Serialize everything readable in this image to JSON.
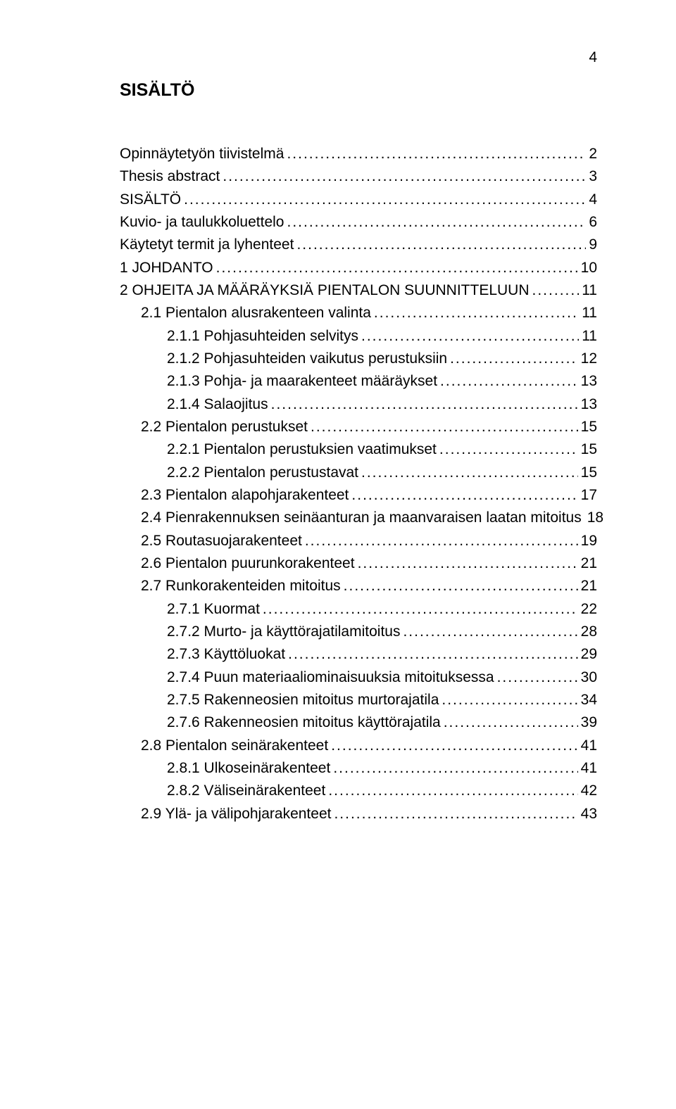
{
  "page": {
    "number": "4",
    "heading": "SISÄLTÖ"
  },
  "toc": {
    "entries": [
      {
        "label": "Opinnäytetyön tiivistelmä",
        "page": "2",
        "level": 0
      },
      {
        "label": "Thesis abstract",
        "page": "3",
        "level": 0
      },
      {
        "label": "SISÄLTÖ",
        "page": "4",
        "level": 0
      },
      {
        "label": "Kuvio- ja taulukkoluettelo",
        "page": "6",
        "level": 0
      },
      {
        "label": "Käytetyt termit ja lyhenteet",
        "page": "9",
        "level": 0
      },
      {
        "label": "1 JOHDANTO",
        "page": "10",
        "level": 0
      },
      {
        "label": "2 OHJEITA JA MÄÄRÄYKSIÄ PIENTALON SUUNNITTELUUN",
        "page": "11",
        "level": 0
      },
      {
        "label": "2.1 Pientalon alusrakenteen valinta",
        "page": "11",
        "level": 1
      },
      {
        "label": "2.1.1 Pohjasuhteiden selvitys",
        "page": "11",
        "level": 2
      },
      {
        "label": "2.1.2 Pohjasuhteiden vaikutus perustuksiin",
        "page": "12",
        "level": 2
      },
      {
        "label": "2.1.3 Pohja- ja maarakenteet määräykset",
        "page": "13",
        "level": 2
      },
      {
        "label": "2.1.4 Salaojitus",
        "page": "13",
        "level": 2
      },
      {
        "label": "2.2 Pientalon perustukset",
        "page": "15",
        "level": 1
      },
      {
        "label": "2.2.1 Pientalon perustuksien vaatimukset",
        "page": "15",
        "level": 2
      },
      {
        "label": "2.2.2 Pientalon perustustavat",
        "page": "15",
        "level": 2
      },
      {
        "label": "2.3 Pientalon alapohjarakenteet",
        "page": "17",
        "level": 1
      },
      {
        "label": "2.4 Pienrakennuksen seinäanturan ja maanvaraisen laatan mitoitus",
        "page": "18",
        "level": 1
      },
      {
        "label": "2.5 Routasuojarakenteet",
        "page": "19",
        "level": 1
      },
      {
        "label": "2.6 Pientalon puurunkorakenteet",
        "page": "21",
        "level": 1
      },
      {
        "label": "2.7 Runkorakenteiden mitoitus",
        "page": "21",
        "level": 1
      },
      {
        "label": "2.7.1 Kuormat",
        "page": "22",
        "level": 2
      },
      {
        "label": "2.7.2 Murto- ja käyttörajatilamitoitus",
        "page": "28",
        "level": 2
      },
      {
        "label": "2.7.3 Käyttöluokat",
        "page": "29",
        "level": 2
      },
      {
        "label": "2.7.4 Puun materiaaliominaisuuksia mitoituksessa",
        "page": "30",
        "level": 2
      },
      {
        "label": "2.7.5 Rakenneosien mitoitus murtorajatila",
        "page": "34",
        "level": 2
      },
      {
        "label": "2.7.6 Rakenneosien mitoitus käyttörajatila",
        "page": "39",
        "level": 2
      },
      {
        "label": "2.8 Pientalon seinärakenteet",
        "page": "41",
        "level": 1
      },
      {
        "label": "2.8.1 Ulkoseinärakenteet",
        "page": "41",
        "level": 2
      },
      {
        "label": "2.8.2 Väliseinärakenteet",
        "page": "42",
        "level": 2
      },
      {
        "label": "2.9 Ylä- ja välipohjarakenteet",
        "page": "43",
        "level": 1
      }
    ]
  },
  "style": {
    "font_family": "Arial",
    "text_color": "#000000",
    "background_color": "#ffffff",
    "heading_fontsize_pt": 19,
    "body_fontsize_pt": 16,
    "leader_char": "."
  }
}
